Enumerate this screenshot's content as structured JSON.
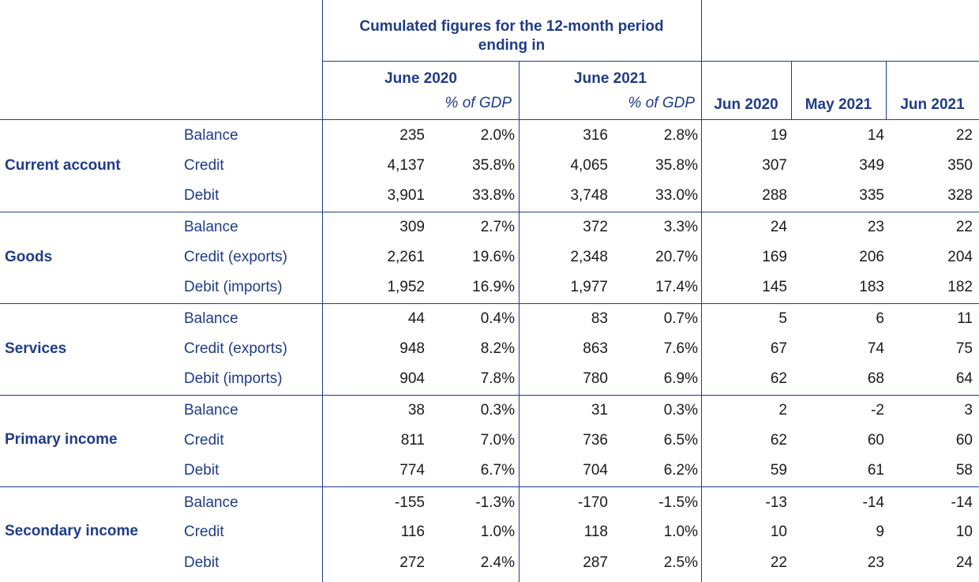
{
  "header": {
    "cumulated_title_line1": "Cumulated figures for the 12-month period",
    "cumulated_title_line2": "ending in",
    "period1": "June 2020",
    "period2": "June 2021",
    "pct_gdp_1": "% of GDP",
    "pct_gdp_2": "% of GDP",
    "month1": "Jun 2020",
    "month2": "May 2021",
    "month3": "Jun 2021"
  },
  "groups": [
    {
      "name": "Current account",
      "rows": [
        {
          "label": "Balance",
          "v1": "235",
          "p1": "2.0%",
          "v2": "316",
          "p2": "2.8%",
          "m1": "19",
          "m2": "14",
          "m3": "22"
        },
        {
          "label": "Credit",
          "v1": "4,137",
          "p1": "35.8%",
          "v2": "4,065",
          "p2": "35.8%",
          "m1": "307",
          "m2": "349",
          "m3": "350"
        },
        {
          "label": "Debit",
          "v1": "3,901",
          "p1": "33.8%",
          "v2": "3,748",
          "p2": "33.0%",
          "m1": "288",
          "m2": "335",
          "m3": "328"
        }
      ]
    },
    {
      "name": "Goods",
      "rows": [
        {
          "label": "Balance",
          "v1": "309",
          "p1": "2.7%",
          "v2": "372",
          "p2": "3.3%",
          "m1": "24",
          "m2": "23",
          "m3": "22"
        },
        {
          "label": "Credit (exports)",
          "v1": "2,261",
          "p1": "19.6%",
          "v2": "2,348",
          "p2": "20.7%",
          "m1": "169",
          "m2": "206",
          "m3": "204"
        },
        {
          "label": "Debit (imports)",
          "v1": "1,952",
          "p1": "16.9%",
          "v2": "1,977",
          "p2": "17.4%",
          "m1": "145",
          "m2": "183",
          "m3": "182"
        }
      ]
    },
    {
      "name": "Services",
      "rows": [
        {
          "label": "Balance",
          "v1": "44",
          "p1": "0.4%",
          "v2": "83",
          "p2": "0.7%",
          "m1": "5",
          "m2": "6",
          "m3": "11"
        },
        {
          "label": "Credit (exports)",
          "v1": "948",
          "p1": "8.2%",
          "v2": "863",
          "p2": "7.6%",
          "m1": "67",
          "m2": "74",
          "m3": "75"
        },
        {
          "label": "Debit (imports)",
          "v1": "904",
          "p1": "7.8%",
          "v2": "780",
          "p2": "6.9%",
          "m1": "62",
          "m2": "68",
          "m3": "64"
        }
      ]
    },
    {
      "name": "Primary income",
      "rows": [
        {
          "label": "Balance",
          "v1": "38",
          "p1": "0.3%",
          "v2": "31",
          "p2": "0.3%",
          "m1": "2",
          "m2": "-2",
          "m3": "3"
        },
        {
          "label": "Credit",
          "v1": "811",
          "p1": "7.0%",
          "v2": "736",
          "p2": "6.5%",
          "m1": "62",
          "m2": "60",
          "m3": "60"
        },
        {
          "label": "Debit",
          "v1": "774",
          "p1": "6.7%",
          "v2": "704",
          "p2": "6.2%",
          "m1": "59",
          "m2": "61",
          "m3": "58"
        }
      ]
    },
    {
      "name": "Secondary income",
      "rows": [
        {
          "label": "Balance",
          "v1": "-155",
          "p1": "-1.3%",
          "v2": "-170",
          "p2": "-1.5%",
          "m1": "-13",
          "m2": "-14",
          "m3": "-14"
        },
        {
          "label": "Credit",
          "v1": "116",
          "p1": "1.0%",
          "v2": "118",
          "p2": "1.0%",
          "m1": "10",
          "m2": "9",
          "m3": "10"
        },
        {
          "label": "Debit",
          "v1": "272",
          "p1": "2.4%",
          "v2": "287",
          "p2": "2.5%",
          "m1": "22",
          "m2": "23",
          "m3": "24"
        }
      ]
    }
  ],
  "colors": {
    "header_text": "#1f3c88",
    "rule": "#1f3c88",
    "number_text": "#1a1a1a"
  }
}
